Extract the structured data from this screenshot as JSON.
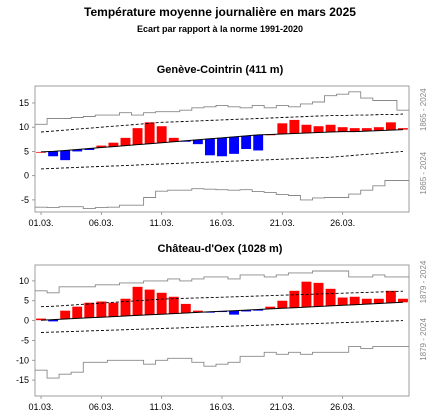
{
  "title": "Température moyenne journalière en mars 2025",
  "subtitle": "Ecart par rapport à la norme 1991-2020",
  "colors": {
    "above": "#ff0000",
    "below": "#0000ff",
    "frame": "#888888",
    "envelope": "#888888",
    "norm": "#000000"
  },
  "chart_data": [
    {
      "type": "bar",
      "title": "Genève-Cointrin (411 m)",
      "period_label": "1865 - 2024",
      "x": [
        1,
        2,
        3,
        4,
        5,
        6,
        7,
        8,
        9,
        10,
        11,
        12,
        13,
        14,
        15,
        16,
        17,
        18,
        19,
        20,
        21,
        22,
        23,
        24,
        25,
        26,
        27,
        28,
        29,
        30,
        31
      ],
      "x_tick_labels": [
        "01.03.",
        "06.03.",
        "11.03.",
        "16.03.",
        "21.03.",
        "26.03."
      ],
      "x_tick_positions": [
        1,
        6,
        11,
        16,
        21,
        26
      ],
      "ylim": [
        -7.5,
        18.5
      ],
      "y_ticks": [
        -5,
        0,
        5,
        10,
        15
      ],
      "daily_mean": [
        4.9,
        4.0,
        3.2,
        5.0,
        5.3,
        6.2,
        6.8,
        7.8,
        9.8,
        11.0,
        10.2,
        7.8,
        7.0,
        6.5,
        4.2,
        4.0,
        4.5,
        5.5,
        5.2,
        8.5,
        10.8,
        11.5,
        10.5,
        10.2,
        10.5,
        10.0,
        9.8,
        9.8,
        10.0,
        11.0,
        9.8
      ],
      "norm": [
        4.9,
        5.0,
        5.2,
        5.4,
        5.6,
        5.8,
        6.0,
        6.2,
        6.4,
        6.6,
        6.8,
        7.0,
        7.2,
        7.4,
        7.6,
        7.8,
        8.0,
        8.2,
        8.4,
        8.5,
        8.6,
        8.7,
        8.8,
        8.9,
        9.0,
        9.1,
        9.1,
        9.2,
        9.3,
        9.4,
        9.5
      ],
      "norm_upper": [
        9.0,
        9.2,
        9.4,
        9.6,
        9.8,
        10.0,
        10.2,
        10.4,
        10.6,
        10.8,
        11.0,
        11.1,
        11.2,
        11.3,
        11.4,
        11.5,
        11.6,
        11.7,
        11.8,
        11.9,
        12.0,
        12.1,
        12.2,
        12.3,
        12.4,
        12.4,
        12.5,
        12.5,
        12.6,
        12.6,
        12.7
      ],
      "norm_lower": [
        1.4,
        1.5,
        1.6,
        1.7,
        1.8,
        1.9,
        2.0,
        2.1,
        2.2,
        2.3,
        2.4,
        2.5,
        2.6,
        2.7,
        2.8,
        2.9,
        3.0,
        3.1,
        3.2,
        3.3,
        3.4,
        3.5,
        3.6,
        3.7,
        3.8,
        4.0,
        4.2,
        4.4,
        4.6,
        4.8,
        5.0
      ],
      "record_max": [
        10.6,
        11.8,
        11.8,
        12.0,
        12.2,
        12.5,
        12.5,
        13.0,
        12.5,
        13.0,
        13.2,
        13.2,
        13.5,
        14.0,
        14.2,
        14.5,
        14.2,
        14.0,
        14.5,
        14.0,
        14.5,
        14.2,
        14.8,
        15.2,
        16.5,
        16.8,
        17.3,
        16.0,
        15.5,
        15.5,
        13.5
      ],
      "record_min": [
        -6.5,
        -6.6,
        -6.4,
        -6.4,
        -6.8,
        -6.6,
        -6.5,
        -6.1,
        -6.1,
        -4.5,
        -3.2,
        -3.0,
        -3.0,
        -2.7,
        -2.8,
        -2.9,
        -3.0,
        -2.9,
        -3.3,
        -3.5,
        -3.9,
        -4.1,
        -5.0,
        -4.6,
        -4.5,
        -4.5,
        -3.8,
        -3.0,
        -2.1,
        -1.0,
        -1.0
      ]
    },
    {
      "type": "bar",
      "title": "Château-d'Oex (1028 m)",
      "period_label": "1879 - 2024",
      "x": [
        1,
        2,
        3,
        4,
        5,
        6,
        7,
        8,
        9,
        10,
        11,
        12,
        13,
        14,
        15,
        16,
        17,
        18,
        19,
        20,
        21,
        22,
        23,
        24,
        25,
        26,
        27,
        28,
        29,
        30,
        31
      ],
      "x_tick_labels": [
        "01.03.",
        "06.03.",
        "11.03.",
        "16.03.",
        "21.03.",
        "26.03."
      ],
      "x_tick_positions": [
        1,
        6,
        11,
        16,
        21,
        26
      ],
      "ylim": [
        -19,
        14
      ],
      "y_ticks": [
        -15,
        -10,
        -5,
        0,
        5,
        10
      ],
      "daily_mean": [
        0.5,
        -0.2,
        2.5,
        3.5,
        4.5,
        4.8,
        4.5,
        5.5,
        8.5,
        7.8,
        7.0,
        6.0,
        4.2,
        2.5,
        2.0,
        2.2,
        1.5,
        2.3,
        2.5,
        3.5,
        5.0,
        7.5,
        9.8,
        9.5,
        8.0,
        5.8,
        6.0,
        5.5,
        5.5,
        7.5,
        5.5
      ],
      "norm": [
        0.1,
        0.25,
        0.4,
        0.55,
        0.7,
        0.85,
        1.0,
        1.15,
        1.3,
        1.45,
        1.6,
        1.75,
        1.9,
        2.05,
        2.2,
        2.35,
        2.5,
        2.65,
        2.8,
        2.95,
        3.1,
        3.25,
        3.4,
        3.55,
        3.7,
        3.85,
        4.0,
        4.15,
        4.3,
        4.45,
        4.6
      ],
      "norm_upper": [
        3.5,
        3.6,
        3.8,
        4.0,
        4.2,
        4.4,
        4.6,
        4.8,
        5.0,
        5.2,
        5.4,
        5.5,
        5.6,
        5.7,
        5.8,
        5.9,
        6.0,
        6.1,
        6.2,
        6.3,
        6.4,
        6.5,
        6.6,
        6.7,
        6.8,
        6.9,
        7.0,
        7.1,
        7.2,
        7.3,
        7.4
      ],
      "norm_lower": [
        -3.0,
        -2.9,
        -2.8,
        -2.7,
        -2.6,
        -2.5,
        -2.4,
        -2.3,
        -2.2,
        -2.1,
        -2.0,
        -1.9,
        -1.8,
        -1.7,
        -1.6,
        -1.5,
        -1.4,
        -1.3,
        -1.2,
        -1.1,
        -1.0,
        -0.9,
        -0.8,
        -0.7,
        -0.6,
        -0.5,
        -0.4,
        -0.3,
        -0.2,
        -0.1,
        0.0
      ],
      "record_max": [
        7.5,
        7.0,
        8.5,
        8.5,
        8.5,
        9.0,
        9.0,
        9.5,
        9.5,
        10.0,
        10.0,
        10.5,
        10.0,
        10.5,
        11.0,
        11.0,
        10.5,
        11.5,
        11.5,
        11.0,
        11.5,
        12.0,
        12.0,
        12.5,
        12.5,
        12.5,
        11.0,
        11.0,
        11.5,
        11.0,
        11.0
      ],
      "record_min": [
        -12.5,
        -14.5,
        -13.5,
        -13.0,
        -10.5,
        -10.5,
        -10.0,
        -10.0,
        -10.0,
        -11.0,
        -10.0,
        -9.5,
        -9.5,
        -10.5,
        -11.5,
        -11.0,
        -10.5,
        -9.0,
        -9.0,
        -8.0,
        -8.5,
        -8.0,
        -8.5,
        -8.0,
        -8.0,
        -8.0,
        -6.5,
        -7.0,
        -6.5,
        -6.5,
        -6.5
      ]
    }
  ]
}
